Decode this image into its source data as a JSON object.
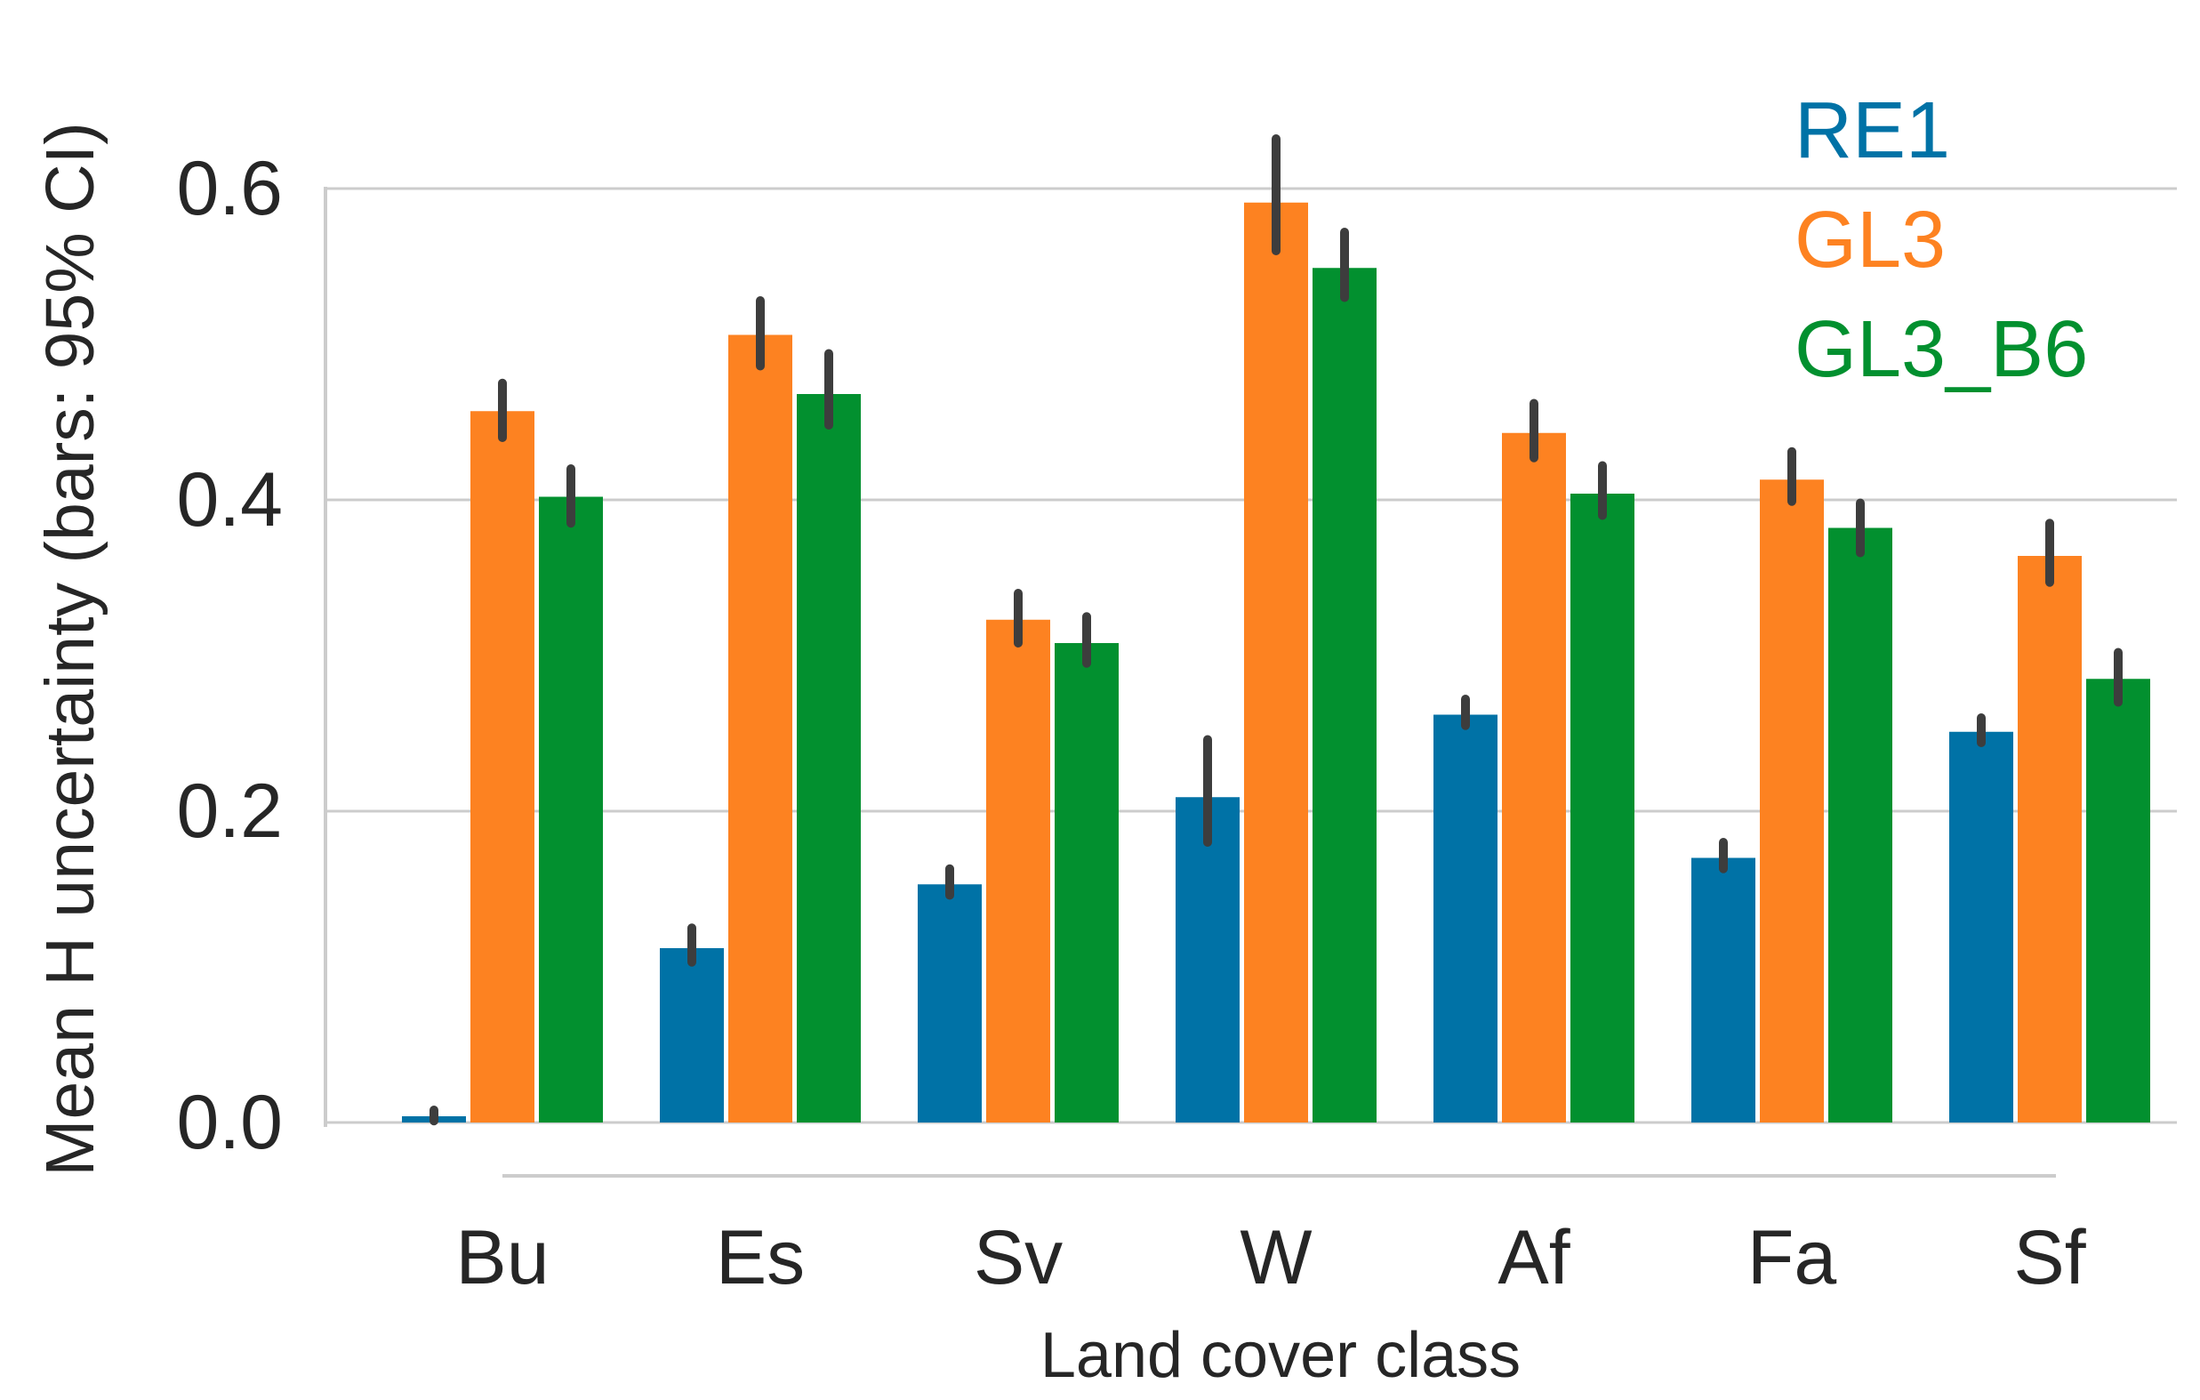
{
  "chart_data": {
    "type": "bar",
    "title": "",
    "xlabel": "Land cover class",
    "ylabel": "Mean H uncertainty (bars: 95% CI)",
    "categories": [
      "Bu",
      "Es",
      "Sv",
      "W",
      "Af",
      "Fa",
      "Sf"
    ],
    "ylim": [
      0,
      0.6
    ],
    "yticks": [
      0.0,
      0.2,
      0.4,
      0.6
    ],
    "ytick_labels": [
      "0.0",
      "0.2",
      "0.4",
      "0.6"
    ],
    "grid": true,
    "legend_position": "top-right",
    "series": [
      {
        "name": "RE1",
        "color": "#0072a6",
        "values": [
          0.004,
          0.112,
          0.153,
          0.209,
          0.262,
          0.17,
          0.251
        ],
        "ci_low": [
          0.001,
          0.103,
          0.146,
          0.18,
          0.255,
          0.163,
          0.244
        ],
        "ci_high": [
          0.008,
          0.125,
          0.163,
          0.246,
          0.272,
          0.18,
          0.26
        ]
      },
      {
        "name": "GL3",
        "color": "#fd8221",
        "values": [
          0.457,
          0.506,
          0.323,
          0.591,
          0.443,
          0.413,
          0.364
        ],
        "ci_low": [
          0.44,
          0.486,
          0.308,
          0.56,
          0.427,
          0.399,
          0.347
        ],
        "ci_high": [
          0.475,
          0.528,
          0.34,
          0.632,
          0.462,
          0.431,
          0.385
        ]
      },
      {
        "name": "GL3_B6",
        "color": "#02902f",
        "values": [
          0.402,
          0.468,
          0.308,
          0.549,
          0.404,
          0.382,
          0.285
        ],
        "ci_low": [
          0.385,
          0.448,
          0.295,
          0.53,
          0.39,
          0.366,
          0.27
        ],
        "ci_high": [
          0.42,
          0.494,
          0.325,
          0.572,
          0.422,
          0.398,
          0.302
        ]
      }
    ]
  }
}
